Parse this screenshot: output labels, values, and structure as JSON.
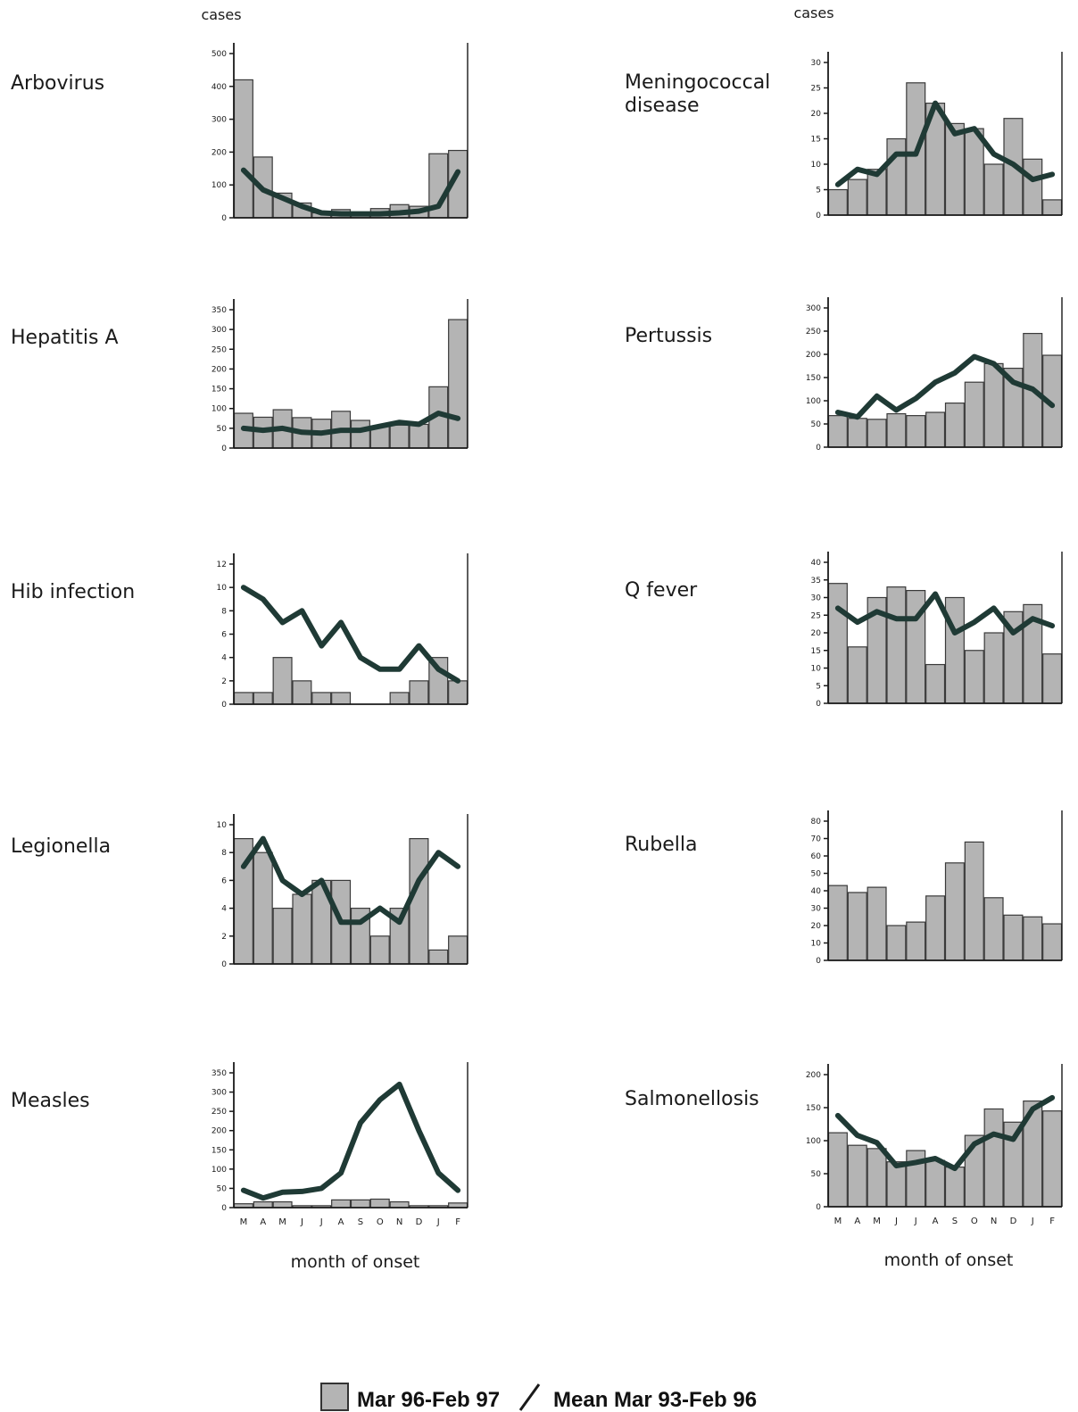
{
  "y_unit_label": "cases",
  "x_axis_label": "month of onset",
  "months": [
    "M",
    "A",
    "M",
    "J",
    "J",
    "A",
    "S",
    "O",
    "N",
    "D",
    "J",
    "F"
  ],
  "legend": {
    "bars_label": "Mar 96-Feb 97",
    "line_label": "Mean Mar 93-Feb 96"
  },
  "colors": {
    "bar_fill": "#b4b4b4",
    "bar_stroke": "#3a3a3a",
    "line": "#1f3a35",
    "axis": "#1a1a1a"
  },
  "chart_data": [
    {
      "type": "bar",
      "title": "Arbovirus",
      "ylim": [
        0,
        500
      ],
      "yticks": [
        0,
        100,
        200,
        300,
        400,
        500
      ],
      "categories": [
        "M",
        "A",
        "M",
        "J",
        "J",
        "A",
        "S",
        "O",
        "N",
        "D",
        "J",
        "F"
      ],
      "series": [
        {
          "name": "Mar 96-Feb 97",
          "values": [
            420,
            185,
            75,
            45,
            15,
            25,
            15,
            28,
            40,
            35,
            195,
            205
          ]
        },
        {
          "name": "Mean Mar 93-Feb 96",
          "type": "line",
          "values": [
            145,
            85,
            60,
            35,
            15,
            12,
            12,
            12,
            15,
            20,
            35,
            140
          ]
        }
      ]
    },
    {
      "type": "bar",
      "title": "Meningococcal disease",
      "ylim": [
        0,
        30
      ],
      "yticks": [
        0,
        5,
        10,
        15,
        20,
        25,
        30
      ],
      "categories": [
        "M",
        "A",
        "M",
        "J",
        "J",
        "A",
        "S",
        "O",
        "N",
        "D",
        "J",
        "F"
      ],
      "series": [
        {
          "name": "Mar 96-Feb 97",
          "values": [
            5,
            7,
            9,
            15,
            26,
            22,
            18,
            17,
            10,
            19,
            11,
            3
          ]
        },
        {
          "name": "Mean Mar 93-Feb 96",
          "type": "line",
          "values": [
            6,
            9,
            8,
            12,
            12,
            22,
            16,
            17,
            12,
            10,
            7,
            8
          ]
        }
      ]
    },
    {
      "type": "bar",
      "title": "Hepatitis A",
      "ylim": [
        0,
        350
      ],
      "yticks": [
        0,
        50,
        100,
        150,
        200,
        250,
        300,
        350
      ],
      "categories": [
        "M",
        "A",
        "M",
        "J",
        "J",
        "A",
        "S",
        "O",
        "N",
        "D",
        "J",
        "F"
      ],
      "series": [
        {
          "name": "Mar 96-Feb 97",
          "values": [
            88,
            78,
            97,
            77,
            73,
            93,
            70,
            55,
            58,
            60,
            155,
            325
          ]
        },
        {
          "name": "Mean Mar 93-Feb 96",
          "type": "line",
          "values": [
            50,
            45,
            50,
            40,
            38,
            45,
            45,
            55,
            65,
            60,
            88,
            75
          ]
        }
      ]
    },
    {
      "type": "bar",
      "title": "Pertussis",
      "ylim": [
        0,
        300
      ],
      "yticks": [
        0,
        50,
        100,
        150,
        200,
        250,
        300
      ],
      "categories": [
        "M",
        "A",
        "M",
        "J",
        "J",
        "A",
        "S",
        "O",
        "N",
        "D",
        "J",
        "F"
      ],
      "series": [
        {
          "name": "Mar 96-Feb 97",
          "values": [
            68,
            62,
            60,
            72,
            68,
            75,
            95,
            140,
            180,
            170,
            245,
            198
          ]
        },
        {
          "name": "Mean Mar 93-Feb 96",
          "type": "line",
          "values": [
            75,
            65,
            110,
            80,
            105,
            140,
            160,
            195,
            180,
            140,
            125,
            90
          ]
        }
      ]
    },
    {
      "type": "bar",
      "title": "Hib infection",
      "ylim": [
        0,
        12
      ],
      "yticks": [
        0,
        2,
        4,
        6,
        8,
        10,
        12
      ],
      "categories": [
        "M",
        "A",
        "M",
        "J",
        "J",
        "A",
        "S",
        "O",
        "N",
        "D",
        "J",
        "F"
      ],
      "series": [
        {
          "name": "Mar 96-Feb 97",
          "values": [
            1,
            1,
            4,
            2,
            1,
            1,
            0,
            0,
            1,
            2,
            4,
            2
          ]
        },
        {
          "name": "Mean Mar 93-Feb 96",
          "type": "line",
          "values": [
            10,
            9,
            7,
            8,
            5,
            7,
            4,
            3,
            3,
            5,
            3,
            2
          ]
        }
      ]
    },
    {
      "type": "bar",
      "title": "Q fever",
      "ylim": [
        0,
        40
      ],
      "yticks": [
        0,
        5,
        10,
        15,
        20,
        25,
        30,
        35,
        40
      ],
      "categories": [
        "M",
        "A",
        "M",
        "J",
        "J",
        "A",
        "S",
        "O",
        "N",
        "D",
        "J",
        "F"
      ],
      "series": [
        {
          "name": "Mar 96-Feb 97",
          "values": [
            34,
            16,
            30,
            33,
            32,
            11,
            30,
            15,
            20,
            26,
            28,
            14
          ]
        },
        {
          "name": "Mean Mar 93-Feb 96",
          "type": "line",
          "values": [
            27,
            23,
            26,
            24,
            24,
            31,
            20,
            23,
            27,
            20,
            24,
            22
          ]
        }
      ]
    },
    {
      "type": "bar",
      "title": "Legionella",
      "ylim": [
        0,
        10
      ],
      "yticks": [
        0,
        2,
        4,
        6,
        8,
        10
      ],
      "categories": [
        "M",
        "A",
        "M",
        "J",
        "J",
        "A",
        "S",
        "O",
        "N",
        "D",
        "J",
        "F"
      ],
      "series": [
        {
          "name": "Mar 96-Feb 97",
          "values": [
            9,
            8,
            4,
            5,
            6,
            6,
            4,
            2,
            4,
            9,
            1,
            2
          ]
        },
        {
          "name": "Mean Mar 93-Feb 96",
          "type": "line",
          "values": [
            7,
            9,
            6,
            5,
            6,
            3,
            3,
            4,
            3,
            6,
            8,
            7
          ]
        }
      ]
    },
    {
      "type": "bar",
      "title": "Rubella",
      "ylim": [
        0,
        80
      ],
      "yticks": [
        0,
        10,
        20,
        30,
        40,
        50,
        60,
        70,
        80
      ],
      "categories": [
        "M",
        "A",
        "M",
        "J",
        "J",
        "A",
        "S",
        "O",
        "N",
        "D",
        "J",
        "F"
      ],
      "series": [
        {
          "name": "Mar 96-Feb 97",
          "values": [
            43,
            39,
            42,
            20,
            22,
            37,
            56,
            68,
            36,
            26,
            25,
            21
          ]
        }
      ]
    },
    {
      "type": "bar",
      "title": "Measles",
      "ylim": [
        0,
        350
      ],
      "yticks": [
        0,
        50,
        100,
        150,
        200,
        250,
        300,
        350
      ],
      "categories": [
        "M",
        "A",
        "M",
        "J",
        "J",
        "A",
        "S",
        "O",
        "N",
        "D",
        "J",
        "F"
      ],
      "series": [
        {
          "name": "Mar 96-Feb 97",
          "values": [
            10,
            15,
            15,
            5,
            5,
            20,
            20,
            22,
            15,
            5,
            5,
            12
          ]
        },
        {
          "name": "Mean Mar 93-Feb 96",
          "type": "line",
          "values": [
            45,
            25,
            40,
            42,
            50,
            90,
            220,
            280,
            320,
            200,
            90,
            45
          ]
        }
      ]
    },
    {
      "type": "bar",
      "title": "Salmonellosis",
      "ylim": [
        0,
        200
      ],
      "yticks": [
        0,
        50,
        100,
        150,
        200
      ],
      "categories": [
        "M",
        "A",
        "M",
        "J",
        "J",
        "A",
        "S",
        "O",
        "N",
        "D",
        "J",
        "F"
      ],
      "series": [
        {
          "name": "Mar 96-Feb 97",
          "values": [
            112,
            93,
            88,
            68,
            85,
            70,
            60,
            108,
            148,
            128,
            160,
            145
          ]
        },
        {
          "name": "Mean Mar 93-Feb 96",
          "type": "line",
          "values": [
            138,
            108,
            97,
            62,
            67,
            73,
            58,
            95,
            110,
            102,
            148,
            165
          ]
        }
      ]
    }
  ]
}
